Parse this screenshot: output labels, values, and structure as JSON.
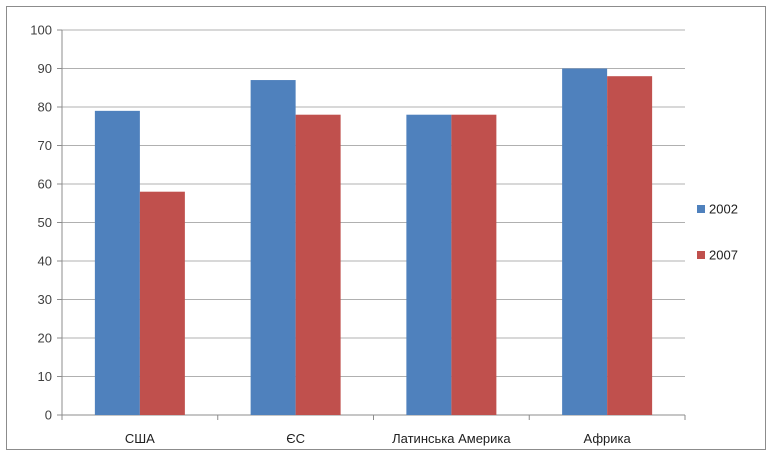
{
  "chart_data": {
    "type": "bar",
    "categories": [
      "США",
      "ЄС",
      "Латинська Америка",
      "Африка"
    ],
    "series": [
      {
        "name": "2002",
        "values": [
          79,
          87,
          78,
          90
        ],
        "color": "#4F81BD"
      },
      {
        "name": "2007",
        "values": [
          58,
          78,
          78,
          88
        ],
        "color": "#C0504D"
      }
    ],
    "ylim": [
      0,
      100
    ],
    "yticks": [
      0,
      10,
      20,
      30,
      40,
      50,
      60,
      70,
      80,
      90,
      100
    ],
    "grid": true,
    "legend_position": "right",
    "title": "",
    "xlabel": "",
    "ylabel": ""
  },
  "colors": {
    "gridline": "#b0b0b0",
    "axis": "#8c8c8c"
  }
}
